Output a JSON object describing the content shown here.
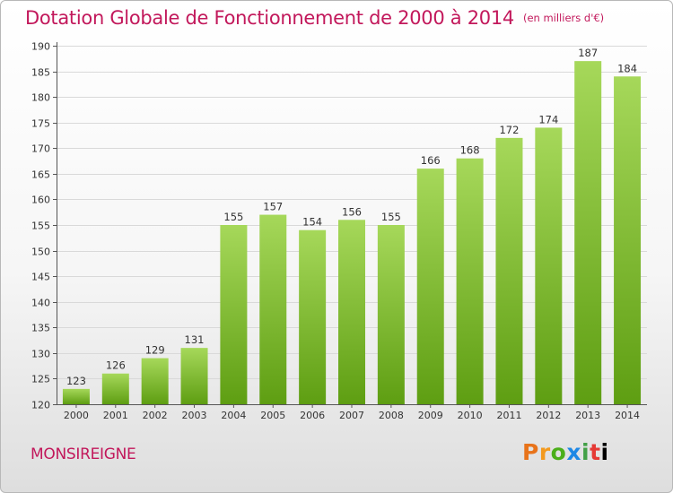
{
  "title": "Dotation Globale de Fonctionnement de 2000 à 2014",
  "unit_note": "(en milliers d'€)",
  "town": "MONSIREIGNE",
  "brand": "Proxiti",
  "colors": {
    "title": "#c2185b",
    "bar_top": "#a6d85a",
    "bar_bottom": "#5e9e12",
    "grid": "#d9d9d9"
  },
  "chart_data": {
    "type": "bar",
    "title": "Dotation Globale de Fonctionnement de 2000 à 2014",
    "subtitle": "(en milliers d'€)",
    "xlabel": "",
    "ylabel": "",
    "categories": [
      "2000",
      "2001",
      "2002",
      "2003",
      "2004",
      "2005",
      "2006",
      "2007",
      "2008",
      "2009",
      "2010",
      "2011",
      "2012",
      "2013",
      "2014"
    ],
    "values": [
      123,
      126,
      129,
      131,
      155,
      157,
      154,
      156,
      155,
      166,
      168,
      172,
      174,
      187,
      184
    ],
    "ylim": [
      120,
      190
    ],
    "yticks": [
      120,
      125,
      130,
      135,
      140,
      145,
      150,
      155,
      160,
      165,
      170,
      175,
      180,
      185,
      190
    ],
    "grid": true,
    "data_labels": true
  }
}
